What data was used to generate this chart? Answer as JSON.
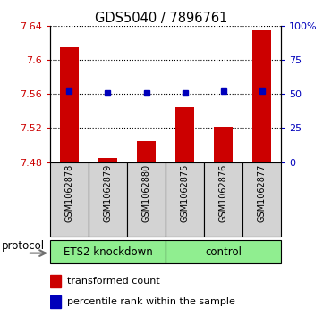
{
  "title": "GDS5040 / 7896761",
  "samples": [
    "GSM1062878",
    "GSM1062879",
    "GSM1062880",
    "GSM1062875",
    "GSM1062876",
    "GSM1062877"
  ],
  "transformed_counts": [
    7.615,
    7.485,
    7.505,
    7.545,
    7.521,
    7.635
  ],
  "percentile_ranks": [
    52,
    51,
    51,
    51,
    52,
    52
  ],
  "ylim_left": [
    7.48,
    7.64
  ],
  "yticks_left": [
    7.48,
    7.52,
    7.56,
    7.6,
    7.64
  ],
  "ytick_labels_left": [
    "7.48",
    "7.52",
    "7.56",
    "7.6",
    "7.64"
  ],
  "ylim_right": [
    0,
    100
  ],
  "yticks_right": [
    0,
    25,
    50,
    75,
    100
  ],
  "ytick_labels_right": [
    "0",
    "25",
    "50",
    "75",
    "100%"
  ],
  "base_value": 7.48,
  "bar_color": "#CC0000",
  "dot_color": "#0000BB",
  "left_tick_color": "#CC0000",
  "right_tick_color": "#0000BB",
  "sample_bg_color": "#d3d3d3",
  "group_bg_color": "#90EE90",
  "bar_width": 0.5,
  "groups": [
    {
      "label": "ETS2 knockdown",
      "start": 0,
      "end": 2
    },
    {
      "label": "control",
      "start": 3,
      "end": 5
    }
  ],
  "legend_items": [
    {
      "label": "transformed count",
      "color": "#CC0000"
    },
    {
      "label": "percentile rank within the sample",
      "color": "#0000BB"
    }
  ],
  "protocol_label": "protocol"
}
